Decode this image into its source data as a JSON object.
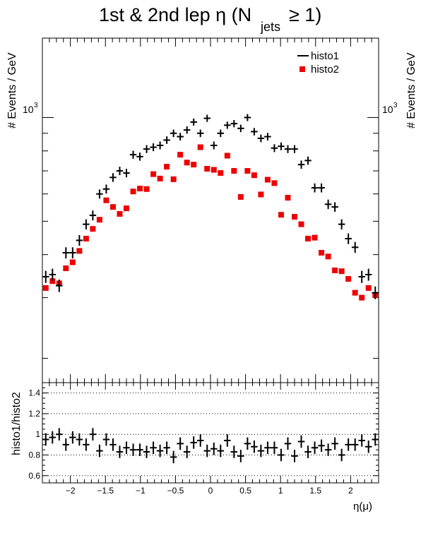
{
  "chart_data": [
    {
      "type": "scatter",
      "role": "main",
      "title": "1st & 2nd lep η (N",
      "title_sub": "jets",
      "title_tail": "≥ 1)",
      "ylabel": "# Events / GeV",
      "ylabel_right": "# Events / GeV",
      "yscale": "log",
      "xlim": [
        -2.4,
        2.4
      ],
      "ylim": [
        170,
        1700
      ],
      "ytick_label": "10",
      "ytick_label_exp": "3",
      "legend": {
        "placement": "top-right"
      },
      "series": [
        {
          "name": "histo1",
          "marker": "errorbar-cross",
          "color": "#000000",
          "values": [
            345,
            350,
            325,
            405,
            405,
            440,
            490,
            520,
            600,
            620,
            670,
            700,
            690,
            780,
            770,
            810,
            820,
            830,
            860,
            900,
            880,
            920,
            970,
            900,
            995,
            830,
            900,
            950,
            960,
            930,
            1000,
            910,
            870,
            880,
            815,
            825,
            810,
            810,
            730,
            750,
            625,
            625,
            560,
            550,
            490,
            445,
            420,
            345,
            350,
            310
          ]
        },
        {
          "name": "histo2",
          "marker": "square",
          "color": "#ee0000",
          "values": [
            320,
            335,
            330,
            365,
            380,
            410,
            445,
            475,
            505,
            575,
            550,
            525,
            545,
            610,
            622,
            620,
            685,
            665,
            720,
            662,
            780,
            740,
            730,
            820,
            710,
            705,
            690,
            775,
            700,
            588,
            700,
            680,
            598,
            660,
            645,
            522,
            585,
            515,
            490,
            445,
            448,
            405,
            395,
            360,
            358,
            340,
            310,
            300,
            320,
            305
          ]
        }
      ]
    },
    {
      "type": "scatter",
      "role": "ratio",
      "ylabel": "histo1/histo2",
      "xlabel": "η(μ)",
      "xlim": [
        -2.4,
        2.4
      ],
      "ylim": [
        0.53,
        1.5
      ],
      "grid": "dotted-horizontal",
      "xtick_labels": [
        "−2",
        "−1.5",
        "−1",
        "−0.5",
        "0",
        "0.5",
        "1",
        "1.5",
        "2"
      ],
      "ytick_labels": [
        "0.6",
        "0.8",
        "1",
        "1.2",
        "1.4"
      ],
      "series": [
        {
          "name": "histo1/histo2",
          "marker": "errorbar-cross",
          "color": "#000000",
          "values": [
            0.95,
            0.97,
            1.0,
            0.9,
            0.97,
            0.95,
            0.9,
            1.0,
            0.84,
            0.95,
            0.9,
            0.83,
            0.87,
            0.85,
            0.85,
            0.83,
            0.87,
            0.84,
            0.87,
            0.78,
            0.91,
            0.83,
            0.92,
            0.94,
            0.84,
            0.86,
            0.84,
            0.94,
            0.83,
            0.79,
            0.91,
            0.88,
            0.84,
            0.87,
            0.87,
            0.8,
            0.91,
            0.79,
            0.93,
            0.83,
            0.87,
            0.89,
            0.85,
            0.91,
            0.8,
            0.9,
            0.9,
            0.94,
            0.88,
            0.95
          ]
        }
      ]
    }
  ]
}
